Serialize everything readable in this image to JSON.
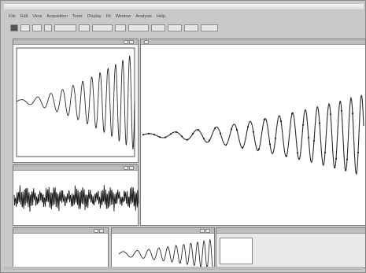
{
  "window": {
    "title": ""
  },
  "menu": {
    "items": [
      "File",
      "Edit",
      "View",
      "Acquisition",
      "Tools",
      "Display",
      "Fit",
      "Window",
      "Analysis",
      "Help"
    ]
  },
  "toolbar": {
    "buttons": [
      "",
      "",
      "",
      "",
      "",
      "",
      "",
      "",
      "",
      "",
      "",
      "",
      ""
    ]
  },
  "colors": {
    "trace": "#2b2b2b",
    "panel_bg": "#ffffff",
    "chrome": "#c9c9c9"
  },
  "icons": [
    "window-icon",
    "open-icon",
    "save-icon",
    "zoom-icon",
    "cursor-icon"
  ]
}
